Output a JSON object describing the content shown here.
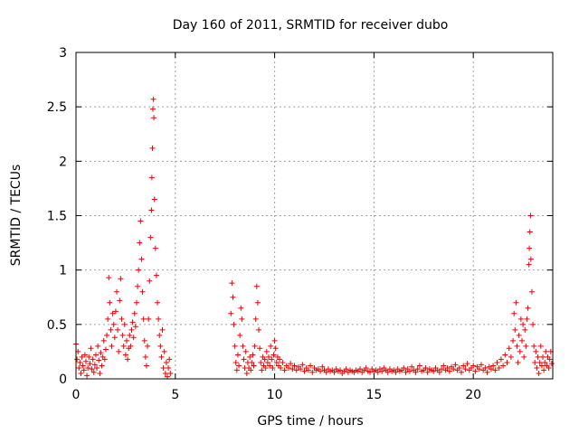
{
  "chart_data": {
    "type": "scatter",
    "title": "Day 160 of 2011, SRMTID for receiver dubo",
    "xlabel": "GPS time / hours",
    "ylabel": "SRMTID / TECUs",
    "xlim": [
      0,
      24
    ],
    "ylim": [
      0,
      3
    ],
    "xticks": [
      "0",
      "5",
      "10",
      "15",
      "20"
    ],
    "yticks": [
      "0",
      "0.5",
      "1",
      "1.5",
      "2",
      "2.5",
      "3"
    ],
    "grid": true,
    "marker": "+",
    "color": "#ee0000",
    "series": [
      {
        "name": "SRMTID",
        "points": [
          [
            0.0,
            0.32
          ],
          [
            0.05,
            0.18
          ],
          [
            0.1,
            0.25
          ],
          [
            0.15,
            0.1
          ],
          [
            0.2,
            0.15
          ],
          [
            0.25,
            0.05
          ],
          [
            0.3,
            0.2
          ],
          [
            0.35,
            0.12
          ],
          [
            0.4,
            0.08
          ],
          [
            0.45,
            0.22
          ],
          [
            0.5,
            0.16
          ],
          [
            0.55,
            0.03
          ],
          [
            0.6,
            0.1
          ],
          [
            0.65,
            0.2
          ],
          [
            0.7,
            0.14
          ],
          [
            0.75,
            0.28
          ],
          [
            0.8,
            0.09
          ],
          [
            0.85,
            0.18
          ],
          [
            0.9,
            0.06
          ],
          [
            0.95,
            0.13
          ],
          [
            1.0,
            0.22
          ],
          [
            1.05,
            0.1
          ],
          [
            1.1,
            0.3
          ],
          [
            1.15,
            0.17
          ],
          [
            1.2,
            0.05
          ],
          [
            1.25,
            0.24
          ],
          [
            1.3,
            0.12
          ],
          [
            1.35,
            0.2
          ],
          [
            1.4,
            0.35
          ],
          [
            1.45,
            0.18
          ],
          [
            1.5,
            0.27
          ],
          [
            1.55,
            0.4
          ],
          [
            1.6,
            0.55
          ],
          [
            1.65,
            0.93
          ],
          [
            1.7,
            0.7
          ],
          [
            1.75,
            0.45
          ],
          [
            1.8,
            0.3
          ],
          [
            1.85,
            0.6
          ],
          [
            1.9,
            0.5
          ],
          [
            1.95,
            0.38
          ],
          [
            2.0,
            0.62
          ],
          [
            2.05,
            0.8
          ],
          [
            2.1,
            0.45
          ],
          [
            2.15,
            0.25
          ],
          [
            2.2,
            0.72
          ],
          [
            2.25,
            0.92
          ],
          [
            2.3,
            0.55
          ],
          [
            2.35,
            0.4
          ],
          [
            2.4,
            0.3
          ],
          [
            2.45,
            0.5
          ],
          [
            2.5,
            0.22
          ],
          [
            2.55,
            0.35
          ],
          [
            2.6,
            0.18
          ],
          [
            2.65,
            0.28
          ],
          [
            2.7,
            0.4
          ],
          [
            2.75,
            0.3
          ],
          [
            2.8,
            0.45
          ],
          [
            2.85,
            0.52
          ],
          [
            2.9,
            0.38
          ],
          [
            2.95,
            0.6
          ],
          [
            3.0,
            0.48
          ],
          [
            3.05,
            0.7
          ],
          [
            3.1,
            0.85
          ],
          [
            3.15,
            1.0
          ],
          [
            3.2,
            1.25
          ],
          [
            3.25,
            1.45
          ],
          [
            3.3,
            1.1
          ],
          [
            3.35,
            0.8
          ],
          [
            3.4,
            0.55
          ],
          [
            3.45,
            0.35
          ],
          [
            3.5,
            0.2
          ],
          [
            3.55,
            0.12
          ],
          [
            3.6,
            0.3
          ],
          [
            3.65,
            0.55
          ],
          [
            3.7,
            0.9
          ],
          [
            3.75,
            1.3
          ],
          [
            3.8,
            1.55
          ],
          [
            3.82,
            1.85
          ],
          [
            3.85,
            2.12
          ],
          [
            3.87,
            2.48
          ],
          [
            3.9,
            2.57
          ],
          [
            3.92,
            2.4
          ],
          [
            3.95,
            1.65
          ],
          [
            4.0,
            1.2
          ],
          [
            4.05,
            0.95
          ],
          [
            4.1,
            0.7
          ],
          [
            4.15,
            0.55
          ],
          [
            4.2,
            0.4
          ],
          [
            4.25,
            0.3
          ],
          [
            4.3,
            0.2
          ],
          [
            4.35,
            0.45
          ],
          [
            4.4,
            0.1
          ],
          [
            4.45,
            0.25
          ],
          [
            4.5,
            0.05
          ],
          [
            4.55,
            0.15
          ],
          [
            4.6,
            0.02
          ],
          [
            4.65,
            0.1
          ],
          [
            4.7,
            0.18
          ],
          [
            4.75,
            0.05
          ],
          [
            7.8,
            0.6
          ],
          [
            7.85,
            0.88
          ],
          [
            7.9,
            0.75
          ],
          [
            7.95,
            0.5
          ],
          [
            8.0,
            0.3
          ],
          [
            8.05,
            0.15
          ],
          [
            8.1,
            0.08
          ],
          [
            8.15,
            0.22
          ],
          [
            8.2,
            0.12
          ],
          [
            8.25,
            0.4
          ],
          [
            8.3,
            0.65
          ],
          [
            8.35,
            0.55
          ],
          [
            8.4,
            0.3
          ],
          [
            8.45,
            0.18
          ],
          [
            8.5,
            0.1
          ],
          [
            8.55,
            0.25
          ],
          [
            8.6,
            0.05
          ],
          [
            8.65,
            0.15
          ],
          [
            8.7,
            0.1
          ],
          [
            8.75,
            0.2
          ],
          [
            8.8,
            0.08
          ],
          [
            8.85,
            0.15
          ],
          [
            8.9,
            0.22
          ],
          [
            8.95,
            0.12
          ],
          [
            9.0,
            0.3
          ],
          [
            9.05,
            0.55
          ],
          [
            9.1,
            0.85
          ],
          [
            9.15,
            0.7
          ],
          [
            9.2,
            0.45
          ],
          [
            9.25,
            0.28
          ],
          [
            9.3,
            0.15
          ],
          [
            9.35,
            0.08
          ],
          [
            9.4,
            0.2
          ],
          [
            9.45,
            0.12
          ],
          [
            9.5,
            0.18
          ],
          [
            9.55,
            0.1
          ],
          [
            9.6,
            0.25
          ],
          [
            9.65,
            0.15
          ],
          [
            9.7,
            0.2
          ],
          [
            9.75,
            0.12
          ],
          [
            9.8,
            0.3
          ],
          [
            9.85,
            0.18
          ],
          [
            9.9,
            0.1
          ],
          [
            9.95,
            0.22
          ],
          [
            10.0,
            0.35
          ],
          [
            10.05,
            0.28
          ],
          [
            10.1,
            0.15
          ],
          [
            10.15,
            0.2
          ],
          [
            10.2,
            0.12
          ],
          [
            10.25,
            0.18
          ],
          [
            10.3,
            0.1
          ],
          [
            10.4,
            0.15
          ],
          [
            10.5,
            0.08
          ],
          [
            10.6,
            0.12
          ],
          [
            10.7,
            0.1
          ],
          [
            10.8,
            0.14
          ],
          [
            10.9,
            0.09
          ],
          [
            11.0,
            0.12
          ],
          [
            11.1,
            0.08
          ],
          [
            11.2,
            0.11
          ],
          [
            11.3,
            0.09
          ],
          [
            11.4,
            0.13
          ],
          [
            11.5,
            0.07
          ],
          [
            11.6,
            0.1
          ],
          [
            11.7,
            0.08
          ],
          [
            11.8,
            0.12
          ],
          [
            11.9,
            0.06
          ],
          [
            12.0,
            0.1
          ],
          [
            12.1,
            0.08
          ],
          [
            12.2,
            0.09
          ],
          [
            12.3,
            0.07
          ],
          [
            12.4,
            0.11
          ],
          [
            12.5,
            0.08
          ],
          [
            12.6,
            0.06
          ],
          [
            12.7,
            0.09
          ],
          [
            12.8,
            0.07
          ],
          [
            12.9,
            0.08
          ],
          [
            13.0,
            0.06
          ],
          [
            13.1,
            0.09
          ],
          [
            13.2,
            0.07
          ],
          [
            13.3,
            0.08
          ],
          [
            13.4,
            0.05
          ],
          [
            13.5,
            0.07
          ],
          [
            13.6,
            0.09
          ],
          [
            13.7,
            0.06
          ],
          [
            13.8,
            0.08
          ],
          [
            13.9,
            0.07
          ],
          [
            14.0,
            0.06
          ],
          [
            14.1,
            0.08
          ],
          [
            14.2,
            0.07
          ],
          [
            14.3,
            0.09
          ],
          [
            14.4,
            0.06
          ],
          [
            14.5,
            0.08
          ],
          [
            14.6,
            0.1
          ],
          [
            14.7,
            0.07
          ],
          [
            14.8,
            0.06
          ],
          [
            14.9,
            0.09
          ],
          [
            15.0,
            0.07
          ],
          [
            15.1,
            0.08
          ],
          [
            15.2,
            0.06
          ],
          [
            15.3,
            0.09
          ],
          [
            15.4,
            0.07
          ],
          [
            15.5,
            0.1
          ],
          [
            15.6,
            0.08
          ],
          [
            15.7,
            0.06
          ],
          [
            15.8,
            0.09
          ],
          [
            15.9,
            0.07
          ],
          [
            16.0,
            0.08
          ],
          [
            16.1,
            0.06
          ],
          [
            16.2,
            0.09
          ],
          [
            16.3,
            0.07
          ],
          [
            16.4,
            0.08
          ],
          [
            16.5,
            0.1
          ],
          [
            16.6,
            0.06
          ],
          [
            16.7,
            0.09
          ],
          [
            16.8,
            0.07
          ],
          [
            16.9,
            0.11
          ],
          [
            17.0,
            0.08
          ],
          [
            17.1,
            0.06
          ],
          [
            17.2,
            0.09
          ],
          [
            17.3,
            0.12
          ],
          [
            17.4,
            0.07
          ],
          [
            17.5,
            0.08
          ],
          [
            17.6,
            0.1
          ],
          [
            17.7,
            0.06
          ],
          [
            17.8,
            0.09
          ],
          [
            17.9,
            0.08
          ],
          [
            18.0,
            0.07
          ],
          [
            18.1,
            0.1
          ],
          [
            18.2,
            0.08
          ],
          [
            18.3,
            0.06
          ],
          [
            18.4,
            0.09
          ],
          [
            18.5,
            0.12
          ],
          [
            18.6,
            0.08
          ],
          [
            18.7,
            0.1
          ],
          [
            18.8,
            0.07
          ],
          [
            18.9,
            0.11
          ],
          [
            19.0,
            0.09
          ],
          [
            19.1,
            0.13
          ],
          [
            19.2,
            0.08
          ],
          [
            19.3,
            0.1
          ],
          [
            19.4,
            0.06
          ],
          [
            19.5,
            0.12
          ],
          [
            19.6,
            0.09
          ],
          [
            19.7,
            0.14
          ],
          [
            19.8,
            0.08
          ],
          [
            19.9,
            0.1
          ],
          [
            20.0,
            0.12
          ],
          [
            20.1,
            0.07
          ],
          [
            20.2,
            0.11
          ],
          [
            20.3,
            0.09
          ],
          [
            20.4,
            0.13
          ],
          [
            20.5,
            0.08
          ],
          [
            20.6,
            0.1
          ],
          [
            20.7,
            0.06
          ],
          [
            20.8,
            0.11
          ],
          [
            20.9,
            0.09
          ],
          [
            21.0,
            0.12
          ],
          [
            21.1,
            0.08
          ],
          [
            21.2,
            0.15
          ],
          [
            21.3,
            0.1
          ],
          [
            21.4,
            0.18
          ],
          [
            21.5,
            0.12
          ],
          [
            21.6,
            0.22
          ],
          [
            21.7,
            0.15
          ],
          [
            21.8,
            0.28
          ],
          [
            21.9,
            0.2
          ],
          [
            22.0,
            0.35
          ],
          [
            22.05,
            0.6
          ],
          [
            22.1,
            0.45
          ],
          [
            22.15,
            0.7
          ],
          [
            22.2,
            0.3
          ],
          [
            22.25,
            0.15
          ],
          [
            22.3,
            0.4
          ],
          [
            22.35,
            0.25
          ],
          [
            22.4,
            0.55
          ],
          [
            22.45,
            0.35
          ],
          [
            22.5,
            0.5
          ],
          [
            22.55,
            0.2
          ],
          [
            22.6,
            0.45
          ],
          [
            22.65,
            0.3
          ],
          [
            22.7,
            0.55
          ],
          [
            22.75,
            0.65
          ],
          [
            22.8,
            1.05
          ],
          [
            22.82,
            1.2
          ],
          [
            22.85,
            1.35
          ],
          [
            22.88,
            1.5
          ],
          [
            22.9,
            1.1
          ],
          [
            22.95,
            0.8
          ],
          [
            23.0,
            0.5
          ],
          [
            23.05,
            0.3
          ],
          [
            23.1,
            0.15
          ],
          [
            23.15,
            0.25
          ],
          [
            23.2,
            0.1
          ],
          [
            23.25,
            0.2
          ],
          [
            23.3,
            0.05
          ],
          [
            23.35,
            0.15
          ],
          [
            23.4,
            0.3
          ],
          [
            23.45,
            0.12
          ],
          [
            23.5,
            0.2
          ],
          [
            23.55,
            0.08
          ],
          [
            23.6,
            0.15
          ],
          [
            23.65,
            0.25
          ],
          [
            23.7,
            0.12
          ],
          [
            23.75,
            0.2
          ],
          [
            23.8,
            0.1
          ],
          [
            23.85,
            0.18
          ],
          [
            23.9,
            0.25
          ],
          [
            23.95,
            0.14
          ]
        ]
      }
    ]
  }
}
